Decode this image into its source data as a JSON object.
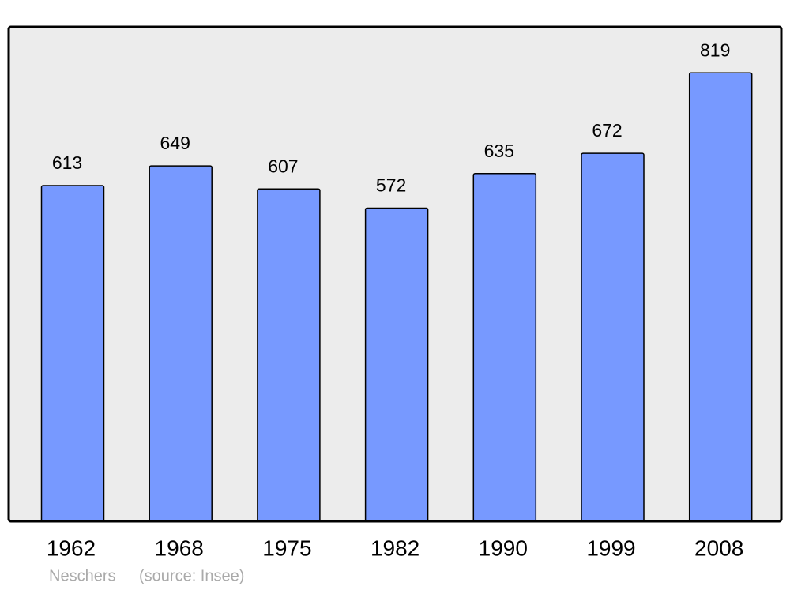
{
  "chart_data": {
    "type": "bar",
    "categories": [
      "1962",
      "1968",
      "1975",
      "1982",
      "1990",
      "1999",
      "2008"
    ],
    "values": [
      613,
      649,
      607,
      572,
      635,
      672,
      819
    ],
    "color": "#7799ff",
    "ylim": [
      0,
      903
    ],
    "caption": "Neschers",
    "source": "(source: Insee)"
  }
}
